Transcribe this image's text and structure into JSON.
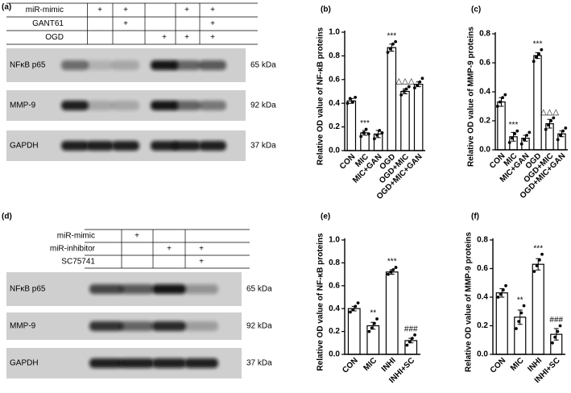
{
  "chart_data": [
    {
      "type": "bar",
      "label": "(b)",
      "y_label": "Relative OD value of NF-κB proteins",
      "categories": [
        "CON",
        "MIC",
        "MIC+GAN",
        "OGD",
        "OGD+MIC",
        "OGD+MIC+GAN"
      ],
      "values": [
        0.42,
        0.15,
        0.14,
        0.87,
        0.5,
        0.56
      ],
      "errors": [
        0.02,
        0.02,
        0.03,
        0.03,
        0.02,
        0.02
      ],
      "points": [
        [
          0.4,
          0.44,
          0.41,
          0.45
        ],
        [
          0.12,
          0.15,
          0.18,
          0.14
        ],
        [
          0.1,
          0.13,
          0.17,
          0.15
        ],
        [
          0.83,
          0.86,
          0.9,
          0.92
        ],
        [
          0.47,
          0.5,
          0.52,
          0.54
        ],
        [
          0.53,
          0.55,
          0.58,
          0.61
        ]
      ],
      "significance": [
        null,
        "***",
        null,
        "***",
        "△△△",
        null
      ],
      "color": "#ffffff",
      "ylim": [
        0,
        1
      ],
      "yticks": [
        {
          "value": 0,
          "label": "0.0"
        },
        {
          "value": 0.2,
          "label": "0.2"
        },
        {
          "value": 0.4,
          "label": "0.4"
        },
        {
          "value": 0.6,
          "label": "0.6"
        },
        {
          "value": 0.8,
          "label": "0.8"
        },
        {
          "value": 1,
          "label": "1.0"
        }
      ]
    },
    {
      "type": "bar",
      "label": "(c)",
      "y_label": "Relative OD value of MMP-9 proteins",
      "categories": [
        "CON",
        "MIC",
        "MIC+GAN",
        "OGD",
        "OGD+MIC",
        "OGD+MIC+GAN"
      ],
      "values": [
        0.33,
        0.09,
        0.08,
        0.65,
        0.18,
        0.11
      ],
      "errors": [
        0.03,
        0.03,
        0.02,
        0.02,
        0.03,
        0.02
      ],
      "points": [
        [
          0.3,
          0.33,
          0.36,
          0.38
        ],
        [
          0.05,
          0.08,
          0.11,
          0.13
        ],
        [
          0.04,
          0.07,
          0.1,
          0.12
        ],
        [
          0.61,
          0.64,
          0.66,
          0.69
        ],
        [
          0.14,
          0.17,
          0.2,
          0.22
        ],
        [
          0.07,
          0.1,
          0.13,
          0.15
        ]
      ],
      "significance": [
        null,
        "***",
        null,
        "***",
        "△△△",
        null
      ],
      "color": "#ffffff",
      "ylim": [
        0,
        0.8
      ],
      "yticks": [
        {
          "value": 0,
          "label": "0.0"
        },
        {
          "value": 0.2,
          "label": "0.2"
        },
        {
          "value": 0.4,
          "label": "0.4"
        },
        {
          "value": 0.6,
          "label": "0.6"
        },
        {
          "value": 0.8,
          "label": "0.8"
        }
      ]
    },
    {
      "type": "bar",
      "label": "(e)",
      "y_label": "Relative OD value of NF-κB proteins",
      "categories": [
        "CON",
        "MIC",
        "INHI",
        "INHI+SC"
      ],
      "values": [
        0.4,
        0.25,
        0.72,
        0.12
      ],
      "errors": [
        0.02,
        0.03,
        0.02,
        0.02
      ],
      "points": [
        [
          0.37,
          0.39,
          0.42,
          0.45
        ],
        [
          0.2,
          0.23,
          0.27,
          0.31
        ],
        [
          0.7,
          0.72,
          0.74,
          0.76
        ],
        [
          0.08,
          0.11,
          0.14,
          0.17
        ]
      ],
      "significance": [
        null,
        "**",
        "***",
        "###"
      ],
      "color": "#ffffff",
      "ylim": [
        0,
        1
      ],
      "yticks": [
        {
          "value": 0,
          "label": "0.0"
        },
        {
          "value": 0.2,
          "label": "0.2"
        },
        {
          "value": 0.4,
          "label": "0.4"
        },
        {
          "value": 0.6,
          "label": "0.6"
        },
        {
          "value": 0.8,
          "label": "0.8"
        },
        {
          "value": 1,
          "label": "1.0"
        }
      ]
    },
    {
      "type": "bar",
      "label": "(f)",
      "y_label": "Relative OD value of MMP-9 proteins",
      "categories": [
        "CON",
        "MIC",
        "INHI",
        "INHI+SC"
      ],
      "values": [
        0.43,
        0.26,
        0.63,
        0.14
      ],
      "errors": [
        0.03,
        0.05,
        0.04,
        0.04
      ],
      "points": [
        [
          0.4,
          0.42,
          0.45,
          0.48
        ],
        [
          0.18,
          0.23,
          0.29,
          0.34
        ],
        [
          0.58,
          0.62,
          0.66,
          0.7
        ],
        [
          0.08,
          0.12,
          0.16,
          0.2
        ]
      ],
      "significance": [
        null,
        "**",
        "***",
        "###"
      ],
      "color": "#ffffff",
      "ylim": [
        0,
        0.8
      ],
      "yticks": [
        {
          "value": 0,
          "label": "0.0"
        },
        {
          "value": 0.2,
          "label": "0.2"
        },
        {
          "value": 0.4,
          "label": "0.4"
        },
        {
          "value": 0.6,
          "label": "0.6"
        },
        {
          "value": 0.8,
          "label": "0.8"
        }
      ]
    }
  ],
  "panels": {
    "a": {
      "label": "(a)",
      "conditions": [
        {
          "name": "miR-mimic",
          "marks": [
            null,
            "+",
            "+",
            null,
            "+",
            "+"
          ]
        },
        {
          "name": "GANT61",
          "marks": [
            null,
            null,
            "+",
            null,
            null,
            "+"
          ]
        },
        {
          "name": "OGD",
          "marks": [
            null,
            null,
            null,
            "+",
            "+",
            "+"
          ]
        }
      ],
      "blots": [
        {
          "protein": "NFκB p65",
          "size": "65 kDa"
        },
        {
          "protein": "MMP-9",
          "size": "92 kDa"
        },
        {
          "protein": "GAPDH",
          "size": "37 kDa"
        }
      ]
    },
    "d": {
      "label": "(d)",
      "conditions": [
        {
          "name": "miR-mimic",
          "marks": [
            null,
            "+",
            null,
            null
          ]
        },
        {
          "name": "miR-inhibitor",
          "marks": [
            null,
            null,
            "+",
            "+"
          ]
        },
        {
          "name": "SC75741",
          "marks": [
            null,
            null,
            null,
            "+"
          ]
        }
      ],
      "blots": [
        {
          "protein": "NFκB p65",
          "size": "65 kDa"
        },
        {
          "protein": "MMP-9",
          "size": "92 kDa"
        },
        {
          "protein": "GAPDH",
          "size": "37 kDa"
        }
      ]
    }
  }
}
